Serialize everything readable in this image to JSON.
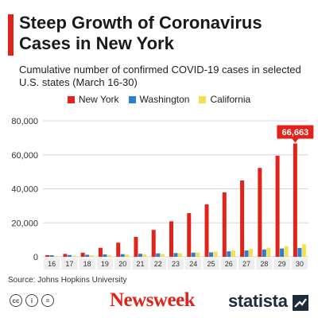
{
  "chart_data": {
    "type": "bar",
    "title": "Steep Growth of Coronavirus Cases in New York",
    "subtitle": "Cumulative number of confirmed COVID-19 cases in selected U.S. states (March 16-30)",
    "categories": [
      "16",
      "17",
      "18",
      "19",
      "20",
      "21",
      "22",
      "23",
      "24",
      "25",
      "26",
      "27",
      "28",
      "29",
      "30"
    ],
    "series": [
      {
        "name": "New York",
        "color": "#e2231a",
        "values": [
          950,
          1700,
          2400,
          5300,
          8300,
          11700,
          15800,
          20900,
          25700,
          30800,
          37900,
          44900,
          52300,
          59500,
          66663
        ]
      },
      {
        "name": "Washington",
        "color": "#2a7fd4",
        "values": [
          900,
          1050,
          1200,
          1400,
          1550,
          1800,
          2000,
          2200,
          2450,
          2600,
          3200,
          3700,
          4300,
          4900,
          5200
        ]
      },
      {
        "name": "California",
        "color": "#f4e04d",
        "values": [
          550,
          700,
          900,
          1100,
          1300,
          1500,
          1700,
          2100,
          2500,
          3000,
          3800,
          4600,
          5300,
          6300,
          7400
        ]
      }
    ],
    "ylim": [
      0,
      80000
    ],
    "yticks": [
      0,
      20000,
      40000,
      60000,
      80000
    ],
    "ytick_labels": [
      "0",
      "20,000",
      "40,000",
      "60,000",
      "80,000"
    ],
    "grid": true,
    "legend_position": "top-center",
    "annotation": {
      "text": "66,663",
      "category": "30",
      "series": "New York"
    }
  },
  "source": "Source: Johns Hopkins University",
  "footer": {
    "newsweek": "Newsweek",
    "statista": "statista"
  },
  "icons": [
    "cc-icon",
    "by-icon",
    "equals-icon"
  ]
}
